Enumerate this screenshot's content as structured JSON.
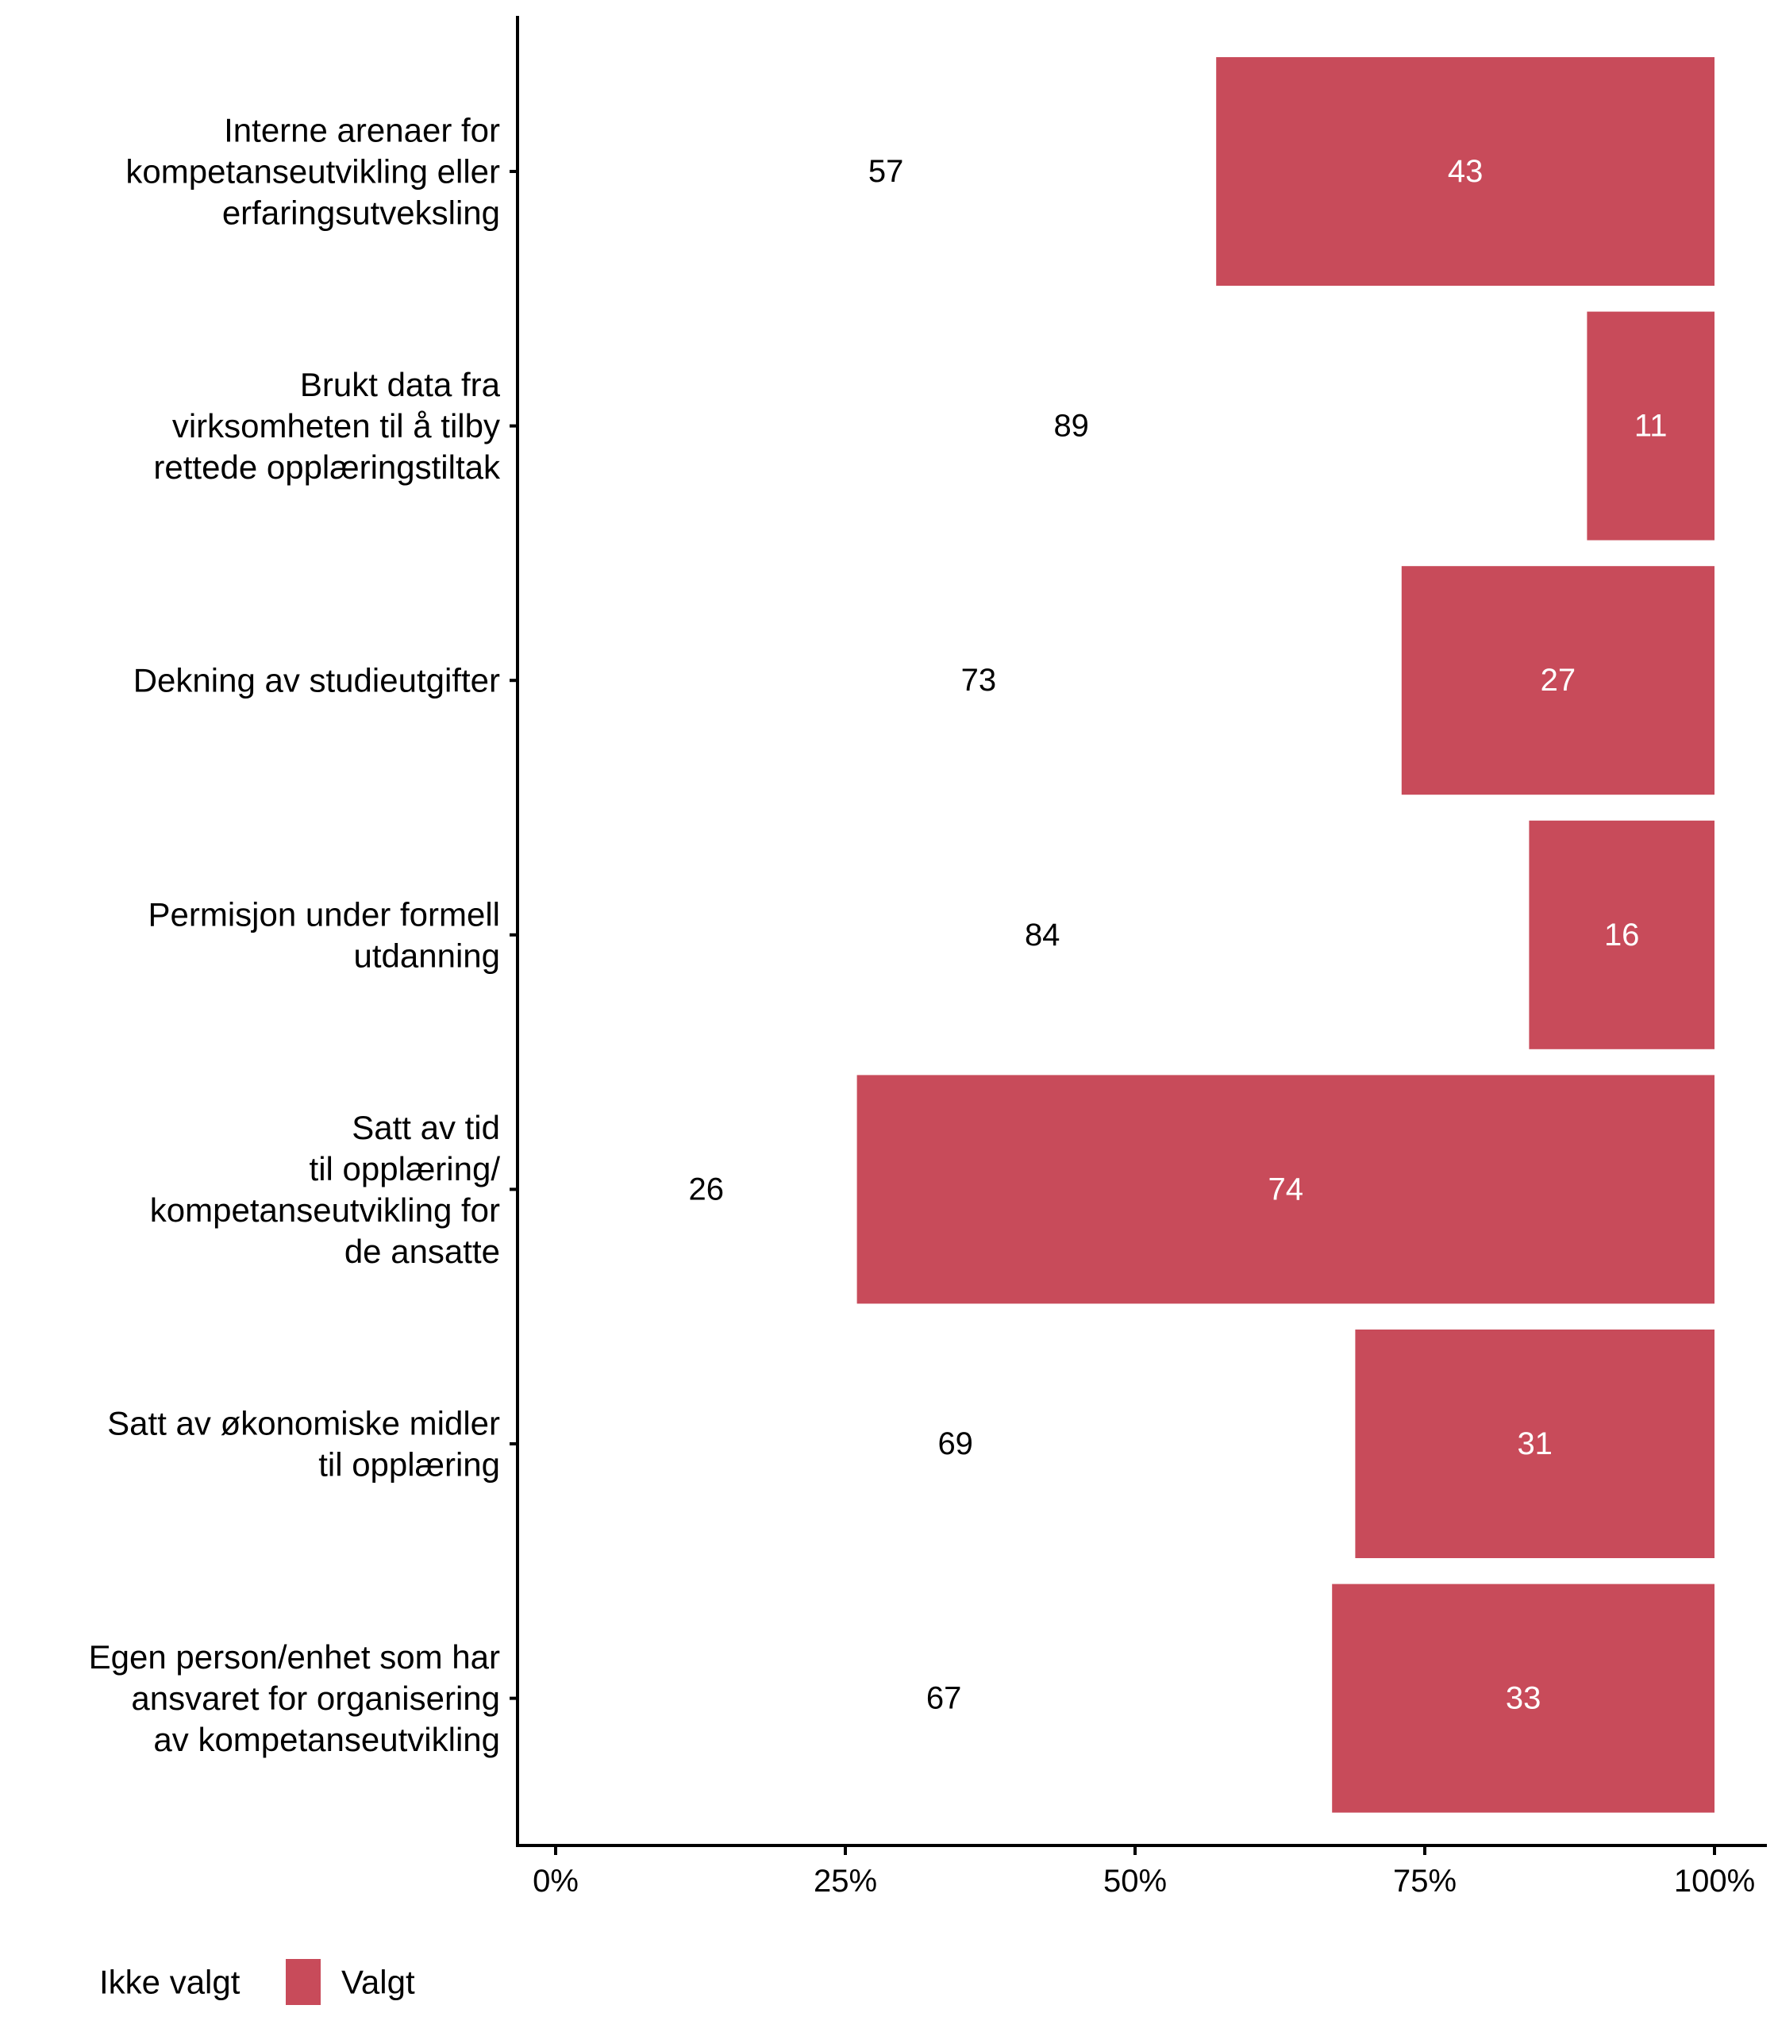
{
  "chart_data": {
    "type": "bar",
    "orientation": "horizontal",
    "stacked": true,
    "percent_scale": true,
    "title": "",
    "xlabel": "",
    "ylabel": "",
    "xlim": [
      0,
      100
    ],
    "x_ticks": [
      0,
      25,
      50,
      75,
      100
    ],
    "x_tick_labels": [
      "0%",
      "25%",
      "50%",
      "75%",
      "100%"
    ],
    "grid": false,
    "legend_position": "bottom-left",
    "categories": [
      [
        "Interne arenaer for",
        "kompetanseutvikling eller",
        "erfaringsutveksling"
      ],
      [
        "Brukt data fra",
        "virksomheten til å tilby",
        "rettede opplæringstiltak"
      ],
      [
        "Dekning av studieutgifter"
      ],
      [
        "Permisjon under formell",
        "utdanning"
      ],
      [
        "Satt av tid",
        "til opplæring/",
        "kompetanseutvikling for",
        "de ansatte"
      ],
      [
        "Satt av økonomiske midler",
        "til opplæring"
      ],
      [
        "Egen person/enhet som har",
        "ansvaret for organisering",
        "av kompetanseutvikling"
      ]
    ],
    "series": [
      {
        "name": "Ikke valgt",
        "color": "#ffffff",
        "label_color": "#000000",
        "values": [
          57,
          89,
          73,
          84,
          26,
          69,
          67
        ]
      },
      {
        "name": "Valgt",
        "color": "#C84B5A",
        "label_color": "#ffffff",
        "values": [
          43,
          11,
          27,
          16,
          74,
          31,
          33
        ]
      }
    ]
  },
  "legend": {
    "items": [
      {
        "label": "Ikke valgt",
        "color": "#ffffff"
      },
      {
        "label": "Valgt",
        "color": "#C84B5A"
      }
    ]
  }
}
